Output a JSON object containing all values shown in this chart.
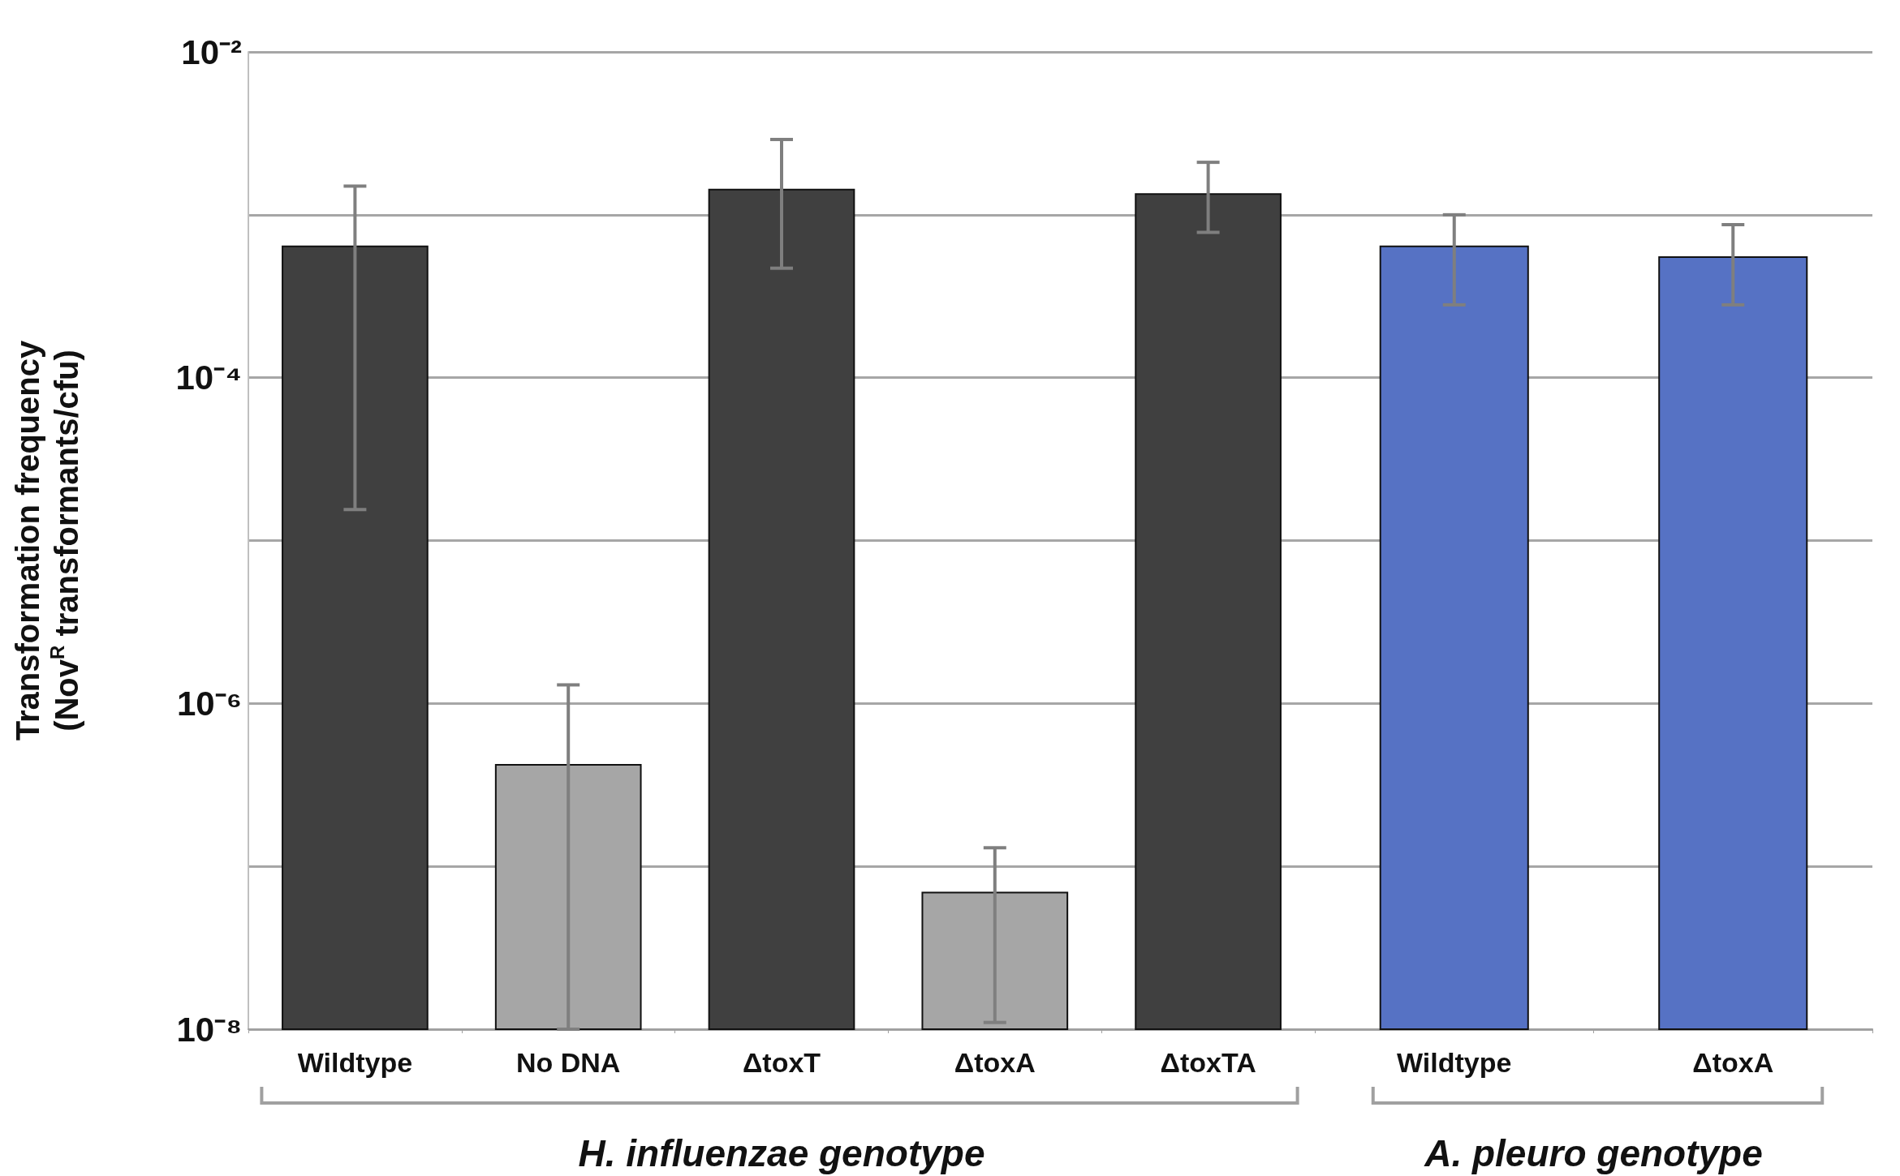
{
  "chart_data": [
    {
      "type": "bar",
      "xlabel": "H. influenzae genotype",
      "ylabel": "Transformation frequency\n(Nov$^{R}$ transformants/cfu)",
      "categories": [
        "Wildtype",
        "No DNA",
        "ΔtoxT",
        "ΔtoxA",
        "ΔtoxTA"
      ],
      "values": [
        0.00064,
        4.2e-07,
        0.00143,
        6.9e-08,
        0.00134
      ],
      "colors": [
        "#404040",
        "#a6a6a6",
        "#404040",
        "#a6a6a6",
        "#404040"
      ],
      "errors": [
        [
          1.55e-05,
          0.0015
        ],
        [
          1e-08,
          1.3e-06
        ],
        [
          0.00047,
          0.0029
        ],
        [
          1.1e-08,
          1.3e-07
        ],
        [
          0.00078,
          0.0021
        ]
      ],
      "log": true,
      "ylim": [
        1e-08,
        0.01
      ],
      "yticks": [
        {
          "value": 1e-08,
          "label": "10⁻⁸"
        },
        {
          "value": 1e-07,
          "label": null
        },
        {
          "value": 1e-06,
          "label": "10⁻⁶"
        },
        {
          "value": 1e-05,
          "label": null
        },
        {
          "value": 0.0001,
          "label": "10⁻⁴"
        },
        {
          "value": 0.001,
          "label": null
        },
        {
          "value": 0.01,
          "label": "10⁻²"
        }
      ],
      "grid": "y"
    },
    {
      "type": "bar",
      "xlabel": "A. pleuro genotype",
      "categories": [
        "Wildtype",
        "ΔtoxA"
      ],
      "values": [
        0.00064,
        0.00055
      ],
      "colors": [
        "#5672c4",
        "#5672c4"
      ],
      "errors": [
        [
          0.00028,
          0.001
        ],
        [
          0.00028,
          0.00087
        ]
      ],
      "log": true,
      "ylim": [
        1e-08,
        0.01
      ],
      "yticks": [
        {
          "value": 1e-08,
          "label": null
        },
        {
          "value": 1e-07,
          "label": null
        },
        {
          "value": 1e-06,
          "label": null
        },
        {
          "value": 1e-05,
          "label": null
        },
        {
          "value": 0.0001,
          "label": null
        },
        {
          "value": 0.001,
          "label": null
        },
        {
          "value": 0.01,
          "label": null
        }
      ],
      "grid": "y",
      "tick_labels": "x"
    }
  ]
}
